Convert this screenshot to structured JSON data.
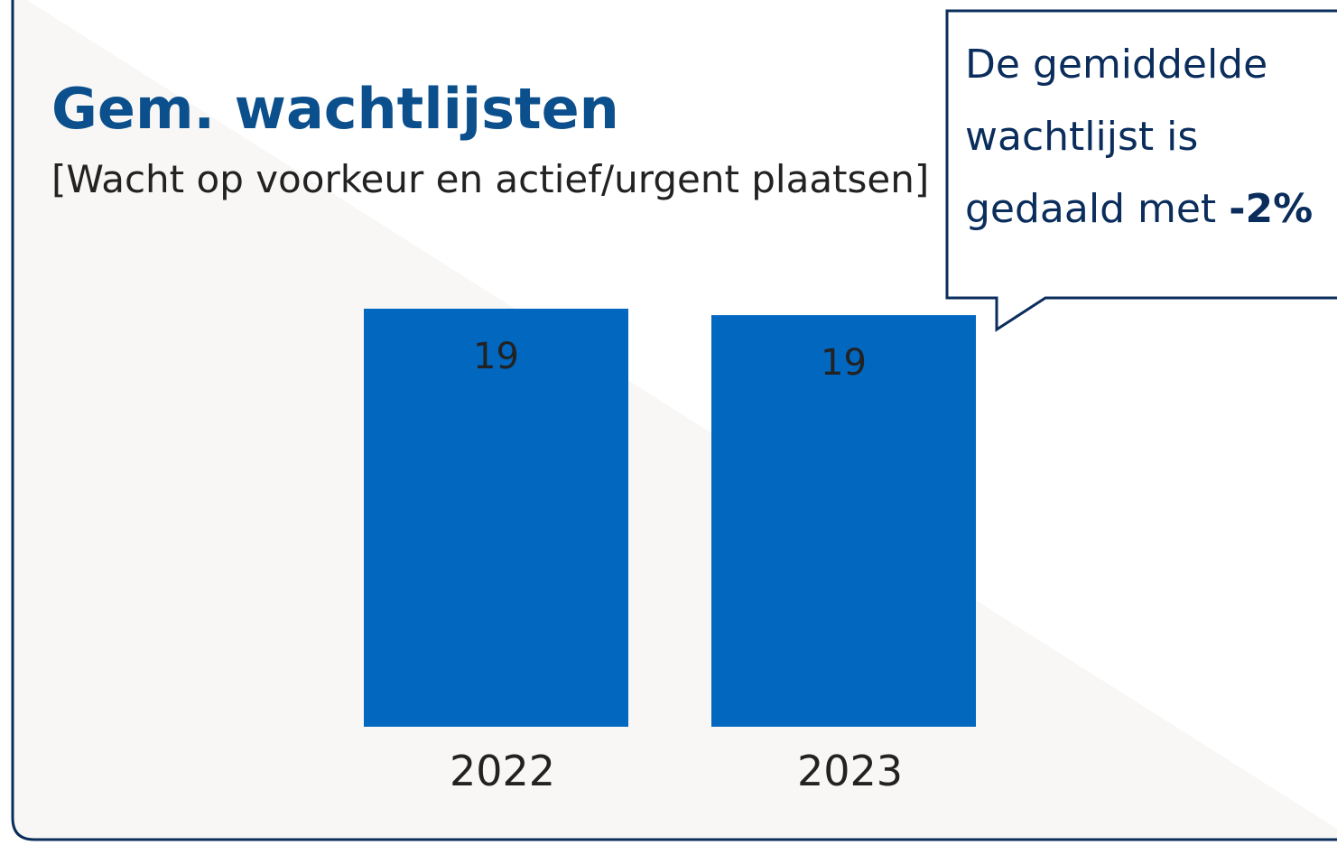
{
  "chart_data": {
    "type": "bar",
    "title": "Gem. wachtlijsten",
    "subtitle": "[Wacht op voorkeur en actief/urgent plaatsen]",
    "categories": [
      "2022",
      "2023"
    ],
    "values": [
      19.4,
      19.1
    ],
    "value_labels": [
      "19",
      "19"
    ],
    "color": "#0267bf",
    "ylim": [
      0,
      20
    ],
    "annotation": {
      "lines": [
        "De gemiddelde",
        "wachtlijst is",
        "gedaald met"
      ],
      "highlight": "-2%"
    }
  }
}
